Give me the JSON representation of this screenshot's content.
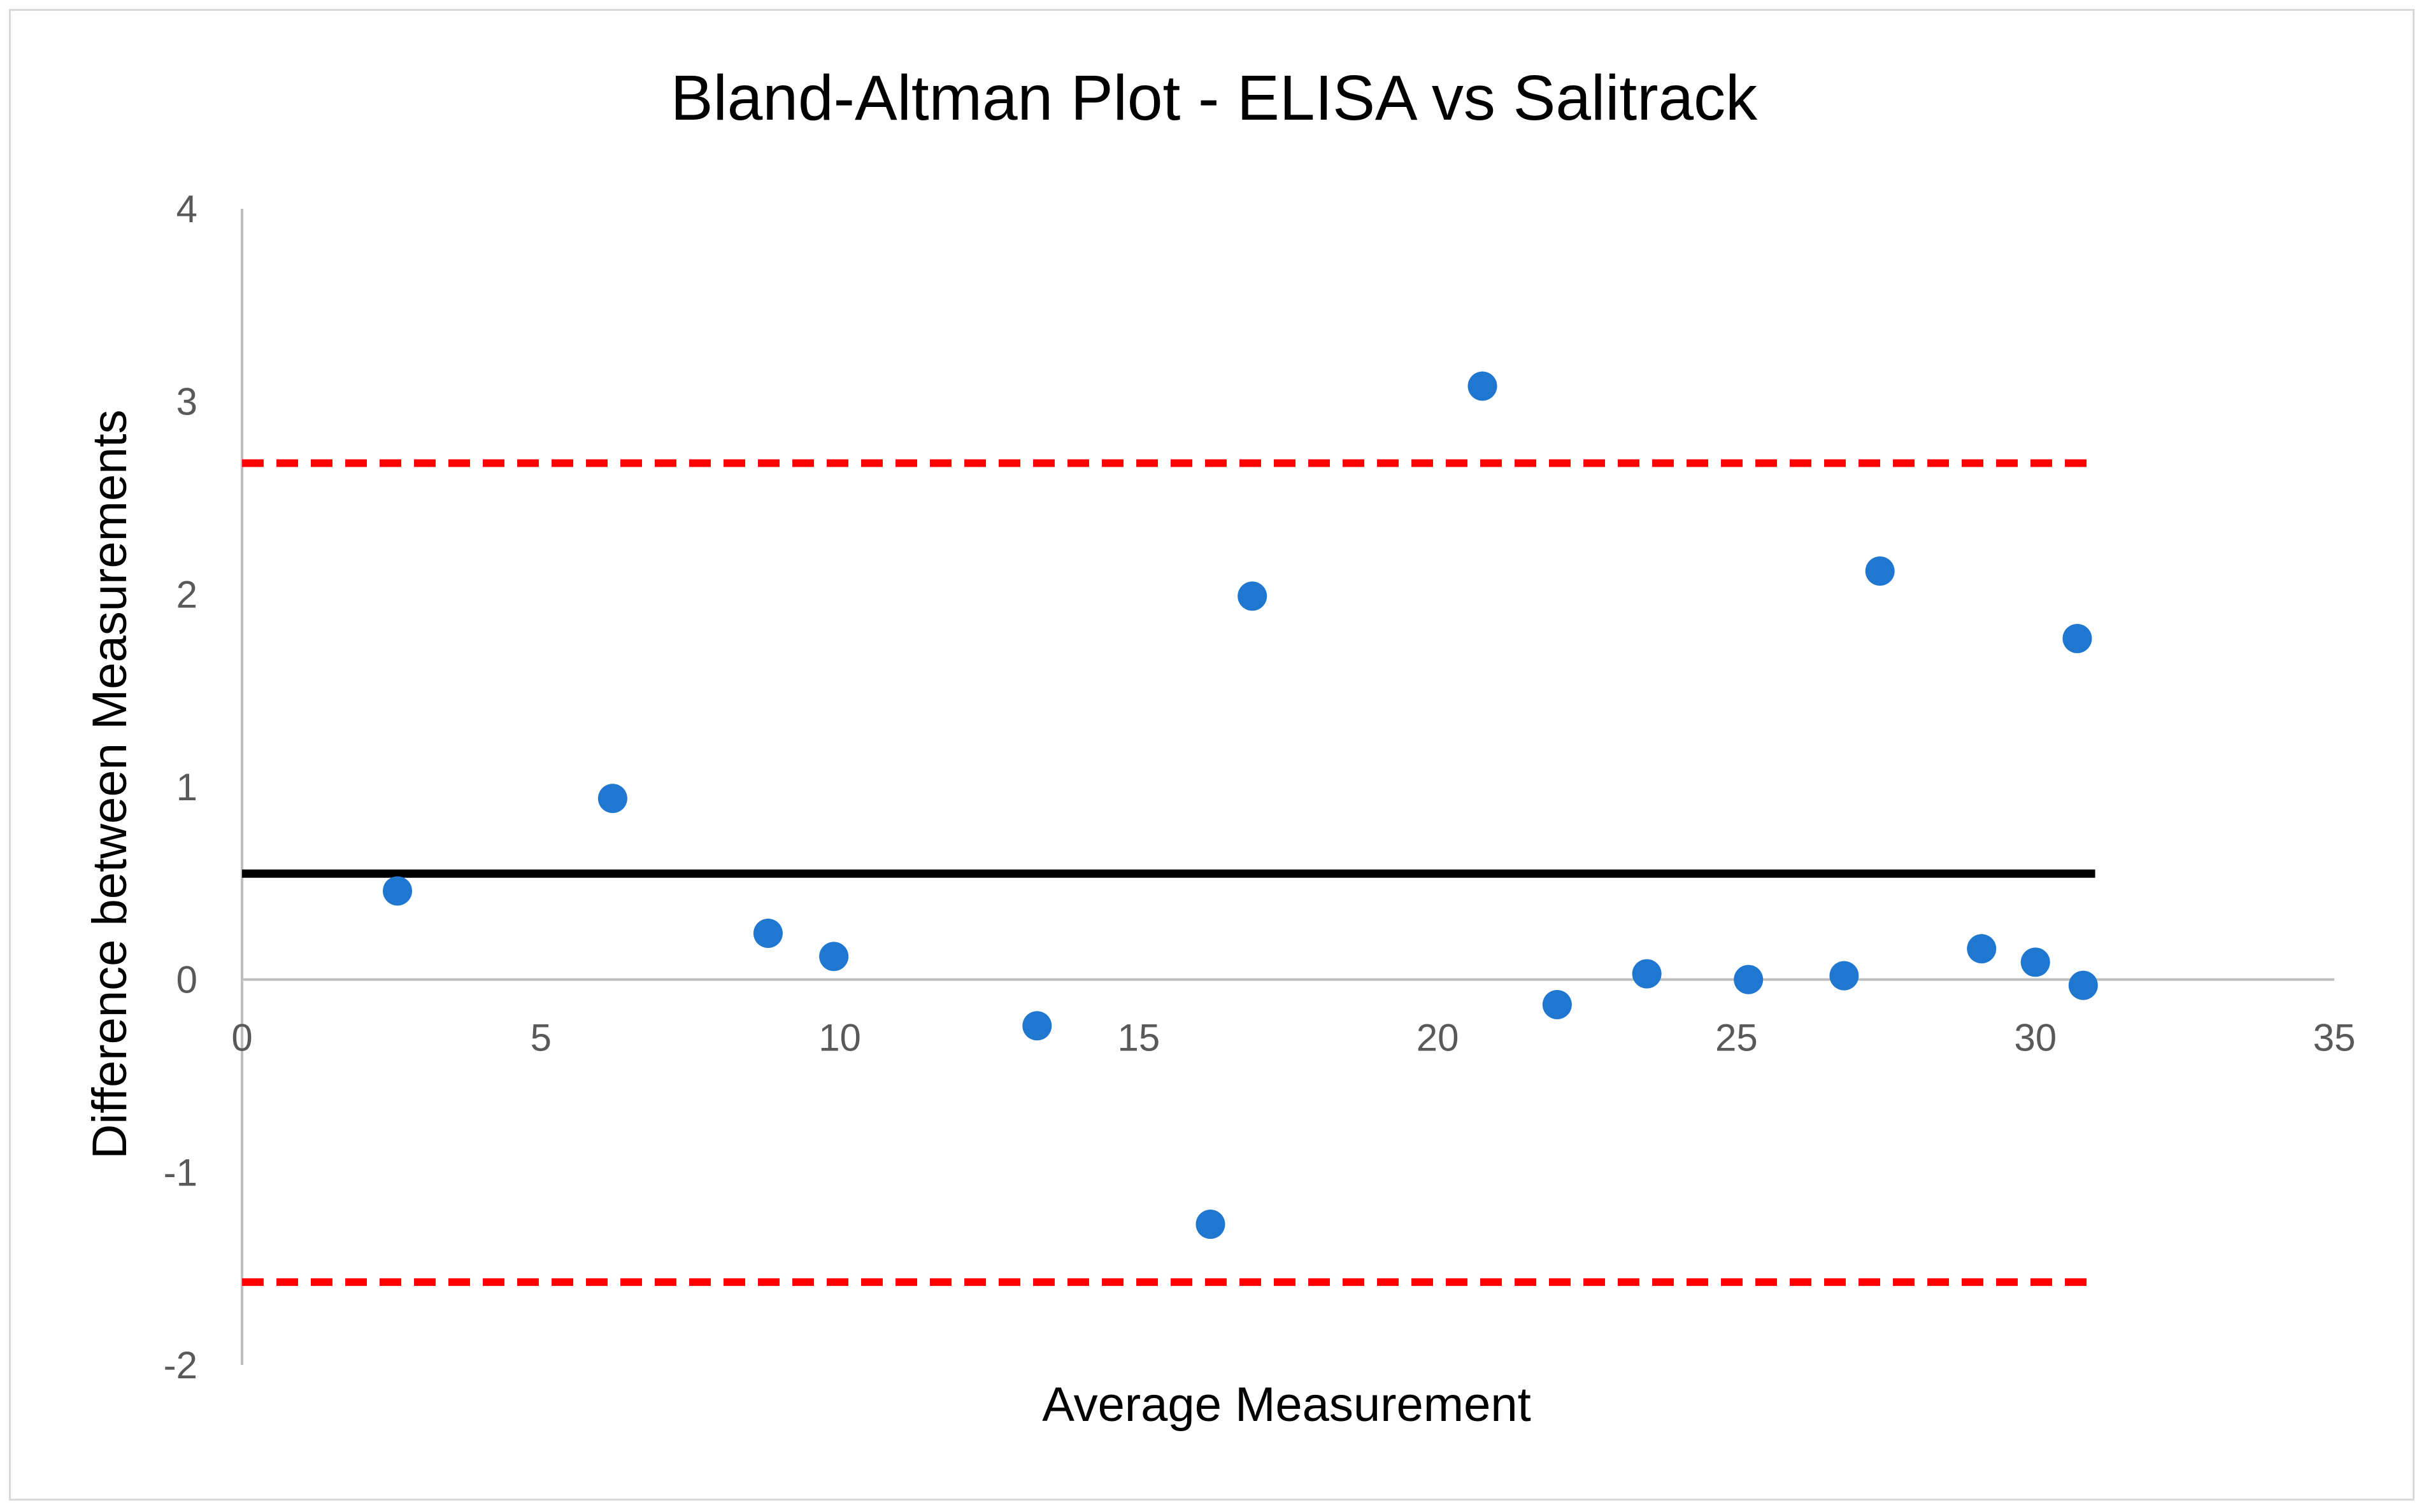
{
  "chart_data": {
    "type": "scatter",
    "title": "Bland-Altman Plot - ELISA vs Salitrack",
    "xlabel": "Average Measurement",
    "ylabel": "Difference between Measurements",
    "xlim": [
      0,
      35
    ],
    "ylim": [
      -2,
      4
    ],
    "x_ticks": [
      "0",
      "5",
      "10",
      "15",
      "20",
      "25",
      "30",
      "35"
    ],
    "y_ticks": [
      "-2",
      "-1",
      "0",
      "1",
      "2",
      "3",
      "4"
    ],
    "grid": false,
    "legend": "none",
    "series": [
      {
        "points": [
          {
            "x": 2.6,
            "y": 0.46
          },
          {
            "x": 6.2,
            "y": 0.94
          },
          {
            "x": 8.8,
            "y": 0.24
          },
          {
            "x": 9.9,
            "y": 0.12
          },
          {
            "x": 13.3,
            "y": -0.24
          },
          {
            "x": 16.2,
            "y": -1.27
          },
          {
            "x": 16.9,
            "y": 1.99
          },
          {
            "x": 20.75,
            "y": 3.08
          },
          {
            "x": 22.0,
            "y": -0.13
          },
          {
            "x": 23.5,
            "y": 0.03
          },
          {
            "x": 25.2,
            "y": 0.0
          },
          {
            "x": 26.8,
            "y": 0.02
          },
          {
            "x": 27.4,
            "y": 2.12
          },
          {
            "x": 29.1,
            "y": 0.16
          },
          {
            "x": 30.0,
            "y": 0.09
          },
          {
            "x": 30.7,
            "y": 1.77
          },
          {
            "x": 30.8,
            "y": -0.03
          }
        ]
      }
    ],
    "reference_lines": [
      {
        "role": "mean-difference",
        "y": 0.55,
        "x_range": [
          0,
          31
        ],
        "style": "solid",
        "color": "#000000"
      },
      {
        "role": "upper-limit-of-agreement",
        "y": 2.68,
        "x_range": [
          0,
          31
        ],
        "style": "dashed",
        "color": "#ff0000"
      },
      {
        "role": "lower-limit-of-agreement",
        "y": -1.57,
        "x_range": [
          0,
          31
        ],
        "style": "dashed",
        "color": "#ff0000"
      }
    ],
    "colors": {
      "points": "#1f77d0",
      "axis": "#bfbfbf",
      "tick_text": "#595959"
    }
  }
}
